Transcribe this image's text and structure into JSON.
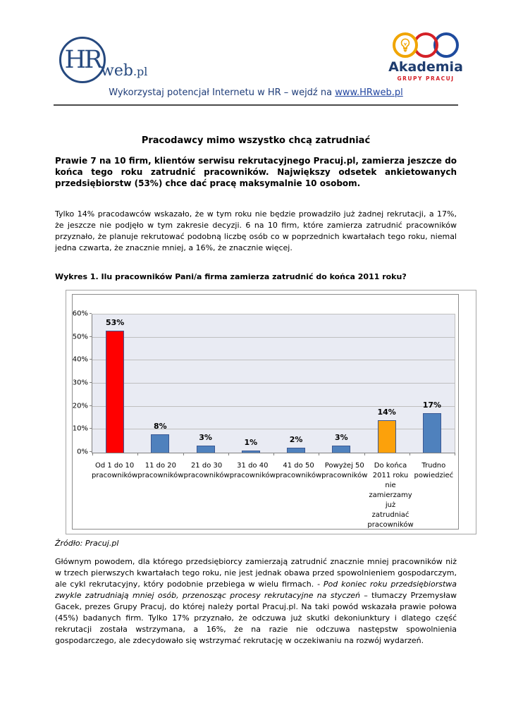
{
  "header": {
    "logo_hrweb": {
      "circle_text": "HR",
      "suffix": "web",
      "domain": ".pl"
    },
    "logo_akademia": {
      "title": "Akademia",
      "subtitle": "GRUPY PRACUJ"
    },
    "tagline_prefix": "Wykorzystaj potencjał Internetu w HR – wejdź na ",
    "tagline_link": "www.HRweb.pl"
  },
  "article": {
    "title": "Pracodawcy mimo wszystko chcą zatrudniać",
    "lead": "Prawie 7 na 10 firm, klientów serwisu rekrutacyjnego Pracuj.pl, zamierza jeszcze do końca tego roku zatrudnić pracowników. Największy odsetek ankietowanych przedsiębiorstw (53%) chce dać pracę maksymalnie 10 osobom.",
    "para1": "Tylko 14% pracodawców wskazało, że w tym roku nie będzie prowadziło już żadnej rekrutacji, a 17%, że jeszcze nie podjęło w tym zakresie decyzji. 6 na 10 firm, które zamierza zatrudnić pracowników przyznało, że planuje rekrutować podobną liczbę osób co w poprzednich kwartałach tego roku, niemal jedna czwarta, że znacznie mniej, a 16%, że znacznie więcej.",
    "chart_caption": "Wykres 1. Ilu  pracowników Pani/a firma zamierza zatrudnić do końca 2011 roku?",
    "source": "Źródło: Pracuj.pl",
    "para2_normal1": "Głównym powodem, dla którego przedsiębiorcy zamierzają zatrudnić znacznie mniej pracowników niż w trzech pierwszych kwartałach tego roku, nie jest jednak obawa przed spowolnieniem gospodarczym, ale cykl rekrutacyjny, który podobnie przebiega w wielu firmach. - ",
    "para2_italic": "Pod koniec roku przedsiębiorstwa zwykle zatrudniają mniej osób, przenosząc procesy rekrutacyjne na styczeń",
    "para2_normal2": " – tłumaczy Przemysław Gacek, prezes Grupy Pracuj, do której należy portal Pracuj.pl. Na taki powód wskazała prawie połowa (45%) badanych firm. Tylko 17% przyznało, że odczuwa już skutki dekoniunktury i dlatego część rekrutacji została wstrzymana, a 16%, że na razie nie odczuwa następstw spowolnienia gospodarczego, ale zdecydowało się wstrzymać rekrutację w oczekiwaniu na rozwój wydarzeń."
  },
  "chart_data": {
    "type": "bar",
    "title": "",
    "xlabel": "",
    "ylabel": "",
    "categories": [
      "Od 1 do 10\npracowników",
      "11 do 20\npracowników",
      "21 do 30\npracowników",
      "31 do 40\npracowników",
      "41 do 50\npracowników",
      "Powyżej 50\npracowników",
      "Do końca\n2011 roku nie\nzamierzamy\njuż\nzatrudniać\npracowników",
      "Trudno\npowiedzieć"
    ],
    "values": [
      53,
      8,
      3,
      1,
      2,
      3,
      14,
      17
    ],
    "value_labels": [
      "53%",
      "8%",
      "3%",
      "1%",
      "2%",
      "3%",
      "14%",
      "17%"
    ],
    "bar_colors": [
      "#FF0000",
      "#4F81BD",
      "#4F81BD",
      "#4F81BD",
      "#4F81BD",
      "#4F81BD",
      "#FCA10B",
      "#4F81BD"
    ],
    "bar_border_color": "#3A5894",
    "y_tick_labels": [
      "0%",
      "10%",
      "20%",
      "30%",
      "40%",
      "50%",
      "60%"
    ],
    "ylim": [
      0,
      60
    ],
    "grid": true,
    "legend": "none",
    "plot_bg": "#E9EBF3"
  }
}
